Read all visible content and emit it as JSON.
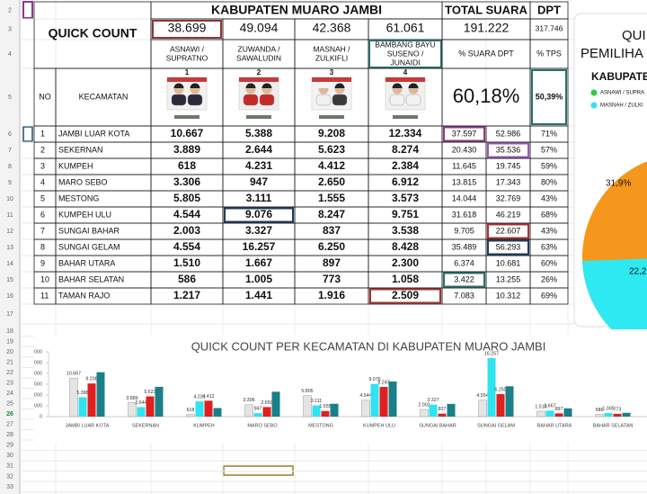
{
  "sheet": {
    "row_numbers": [
      "2",
      "3",
      "4",
      "5",
      "6",
      "7",
      "8",
      "9",
      "10",
      "11",
      "12",
      "13",
      "14",
      "15",
      "16",
      "17",
      "18",
      "19",
      "20",
      "21",
      "22",
      "23",
      "24",
      "25",
      "26",
      "27",
      "28",
      "29",
      "30",
      "31",
      "32",
      "33"
    ],
    "title": "KABUPATEN MUARO JAMBI",
    "label": "QUICK COUNT",
    "total_label": "TOTAL SUARA",
    "total": "191.222",
    "dpt_label": "DPT",
    "dpt": "317.746",
    "candidate_totals": [
      "38.699",
      "49.094",
      "42.368",
      "61.061"
    ],
    "candidates": [
      {
        "name": [
          "ASNAWI /",
          "SUPRATNO"
        ],
        "number": "1"
      },
      {
        "name": [
          "ZUWANDA /",
          "SAWALUDIN"
        ],
        "number": "2"
      },
      {
        "name": [
          "MASNAH /",
          "ZULKIFLI"
        ],
        "number": "3"
      },
      {
        "name": [
          "BAMBANG BAYU",
          "SUSENO /",
          "JUNAIDI"
        ],
        "number": "4"
      }
    ],
    "pct_suara_label": "% SUARA DPT",
    "pct_tps_label": "% TPS",
    "pct_suara": "60,18%",
    "pct_tps": "50,39%",
    "columns": {
      "no": "NO",
      "kecamatan": "KECAMATAN"
    },
    "rows": [
      [
        "1",
        "JAMBI LUAR KOTA",
        "10.667",
        "5.388",
        "9.208",
        "12.334",
        "37.597",
        "52.986",
        "71%"
      ],
      [
        "2",
        "SEKERNAN",
        "3.889",
        "2.644",
        "5.623",
        "8.274",
        "20.430",
        "35.536",
        "57%"
      ],
      [
        "3",
        "KUMPEH",
        "618",
        "4.231",
        "4.412",
        "2.384",
        "11.645",
        "19.745",
        "59%"
      ],
      [
        "4",
        "MARO SEBO",
        "3.306",
        "947",
        "2.650",
        "6.912",
        "13.815",
        "17.343",
        "80%"
      ],
      [
        "5",
        "MESTONG",
        "5.805",
        "3.111",
        "1.555",
        "3.573",
        "14.044",
        "32.769",
        "43%"
      ],
      [
        "6",
        "KUMPEH ULU",
        "4.544",
        "9.076",
        "8.247",
        "9.751",
        "31.618",
        "46.219",
        "68%"
      ],
      [
        "7",
        "SUNGAI BAHAR",
        "2.003",
        "3.327",
        "837",
        "3.538",
        "9.705",
        "22.607",
        "43%"
      ],
      [
        "8",
        "SUNGAI GELAM",
        "4.554",
        "16.257",
        "6.250",
        "8.428",
        "35.489",
        "56.293",
        "63%"
      ],
      [
        "9",
        "BAHAR UTARA",
        "1.510",
        "1.667",
        "897",
        "2.300",
        "6.374",
        "10.681",
        "60%"
      ],
      [
        "10",
        "BAHAR SELATAN",
        "586",
        "1.005",
        "773",
        "1.058",
        "3.422",
        "13.255",
        "26%"
      ],
      [
        "11",
        "TAMAN RAJO",
        "1.217",
        "1.441",
        "1.916",
        "2.509",
        "7.083",
        "10.312",
        "69%"
      ]
    ]
  },
  "pie_panel": {
    "title_lines": [
      "QUI",
      "PEMILIHA",
      "KABUPATE"
    ],
    "legend": [
      "ASNAWI / SUPRA",
      "MASNAH / ZULKI"
    ],
    "slice_labels": [
      "31,9%",
      "22,2"
    ]
  },
  "chart_data": {
    "type": "bar",
    "title": "QUICK COUNT PER KECAMATAN DI KABUPATEN MUARO JAMBI",
    "categories": [
      "JAMBI LUAR KOTA",
      "SEKERNAN",
      "KUMPEH",
      "MARO SEBO",
      "MESTONG",
      "KUMPEH ULU",
      "SUNGAI BAHAR",
      "SUNGAI GELAM",
      "BAHAR UTARA",
      "BAHAR SELATAN"
    ],
    "series": [
      {
        "color": "#e4e4e4",
        "values": [
          10667,
          3889,
          618,
          3306,
          5805,
          4544,
          2003,
          4554,
          1510,
          586
        ],
        "value_labels": [
          "10.667",
          "3.889",
          "618",
          "3.306",
          "5.805",
          "4.544",
          "2.003",
          "4.554",
          "1.510",
          "586"
        ]
      },
      {
        "color": "#2fe3f0",
        "values": [
          5388,
          2644,
          4231,
          947,
          3111,
          9076,
          3327,
          16257,
          1667,
          1005
        ],
        "value_labels": [
          "5.388",
          "2.644",
          "4.231",
          "947",
          "3.111",
          "9.076",
          "3.327",
          "16.257",
          "1.667",
          "1.005"
        ]
      },
      {
        "color": "#e01f1f",
        "values": [
          9208,
          5623,
          4412,
          2650,
          1555,
          8247,
          837,
          6250,
          897,
          773
        ],
        "value_labels": [
          "9.208",
          "5.623",
          "4.412",
          "2.650",
          "1.555",
          "8.247",
          "837",
          "6.250",
          "897",
          "773"
        ]
      },
      {
        "color": "#1b7f88",
        "values": [
          12334,
          8274,
          2384,
          6912,
          3573,
          9751,
          3538,
          8428,
          2300,
          1058
        ]
      }
    ],
    "ylim": [
      0,
      18000
    ],
    "yticks": [
      0,
      {
        "value": 3000,
        "label": "3.000"
      },
      {
        "value": 6000,
        "label": "6.000"
      },
      {
        "value": 9000,
        "label": "9.000"
      },
      {
        "value": 12000,
        "label": "12.000"
      },
      {
        "value": 15000,
        "label": "15.000"
      },
      {
        "value": 18000,
        "label": "18.000"
      }
    ]
  }
}
